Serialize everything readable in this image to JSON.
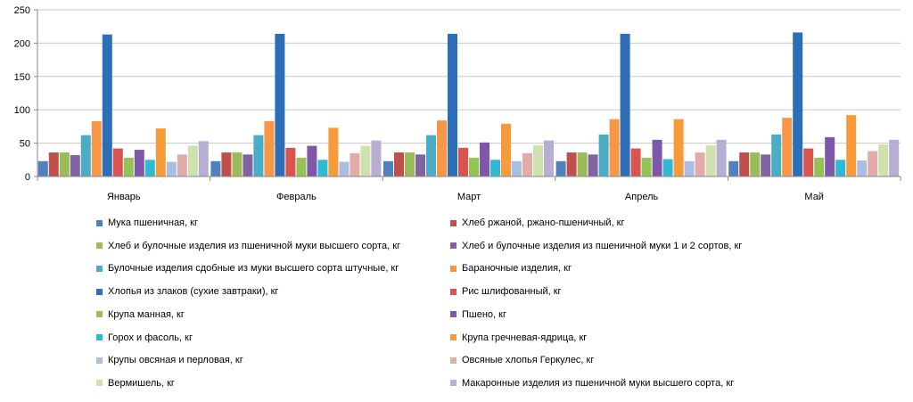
{
  "chart_data": {
    "type": "bar",
    "categories": [
      "Январь",
      "Февраль",
      "Март",
      "Апрель",
      "Май"
    ],
    "ylim": [
      0,
      250
    ],
    "yticks": [
      "0",
      "50",
      "100",
      "150",
      "200",
      "250"
    ],
    "grid": true,
    "legend_position": "bottom",
    "series": [
      {
        "name": "Мука пшеничная, кг",
        "color": "#4F81BD",
        "values": [
          23,
          23,
          23,
          23,
          23
        ]
      },
      {
        "name": "Хлеб ржаной, ржано-пшеничный, кг",
        "color": "#C0504D",
        "values": [
          36,
          36,
          36,
          36,
          36
        ]
      },
      {
        "name": "Хлеб и булочные изделия из пшеничной муки высшего сорта, кг",
        "color": "#9BBB59",
        "values": [
          36,
          36,
          36,
          36,
          36
        ]
      },
      {
        "name": "Хлеб и булочные изделия из пшеничной муки 1 и 2 сортов, кг",
        "color": "#8064A2",
        "values": [
          32,
          33,
          33,
          33,
          33
        ]
      },
      {
        "name": "Булочные изделия сдобные из муки высшего сорта штучные, кг",
        "color": "#4BACC6",
        "values": [
          62,
          62,
          62,
          63,
          63
        ]
      },
      {
        "name": "Бараночные изделия, кг",
        "color": "#F79646",
        "values": [
          83,
          83,
          84,
          86,
          88
        ]
      },
      {
        "name": "Хлопья из злаков (сухие завтраки), кг",
        "color": "#2C6FB6",
        "values": [
          213,
          214,
          214,
          214,
          216
        ]
      },
      {
        "name": "Рис шлифованный, кг",
        "color": "#D9534F",
        "values": [
          42,
          43,
          43,
          42,
          42
        ]
      },
      {
        "name": "Крупа манная, кг",
        "color": "#92C353",
        "values": [
          28,
          28,
          28,
          28,
          28
        ]
      },
      {
        "name": "Пшено, кг",
        "color": "#7E57A8",
        "values": [
          40,
          46,
          51,
          55,
          59
        ]
      },
      {
        "name": "Горох и фасоль, кг",
        "color": "#31B8D3",
        "values": [
          25,
          25,
          25,
          26,
          25
        ]
      },
      {
        "name": "Крупа гречневая-ядрица, кг",
        "color": "#F79A3A",
        "values": [
          72,
          73,
          79,
          86,
          92
        ]
      },
      {
        "name": "Крупы овсяная и перловая, кг",
        "color": "#A9BEE0",
        "values": [
          22,
          22,
          23,
          23,
          24
        ]
      },
      {
        "name": "Овсяные хлопья Геркулес, кг",
        "color": "#E3AAAA",
        "values": [
          33,
          35,
          35,
          36,
          38
        ]
      },
      {
        "name": "Вермишель, кг",
        "color": "#CFE2AE",
        "values": [
          46,
          46,
          47,
          47,
          48
        ]
      },
      {
        "name": "Макаронные изделия из пшеничной муки высшего сорта, кг",
        "color": "#B8ADD3",
        "values": [
          53,
          54,
          54,
          55,
          55
        ]
      }
    ]
  }
}
